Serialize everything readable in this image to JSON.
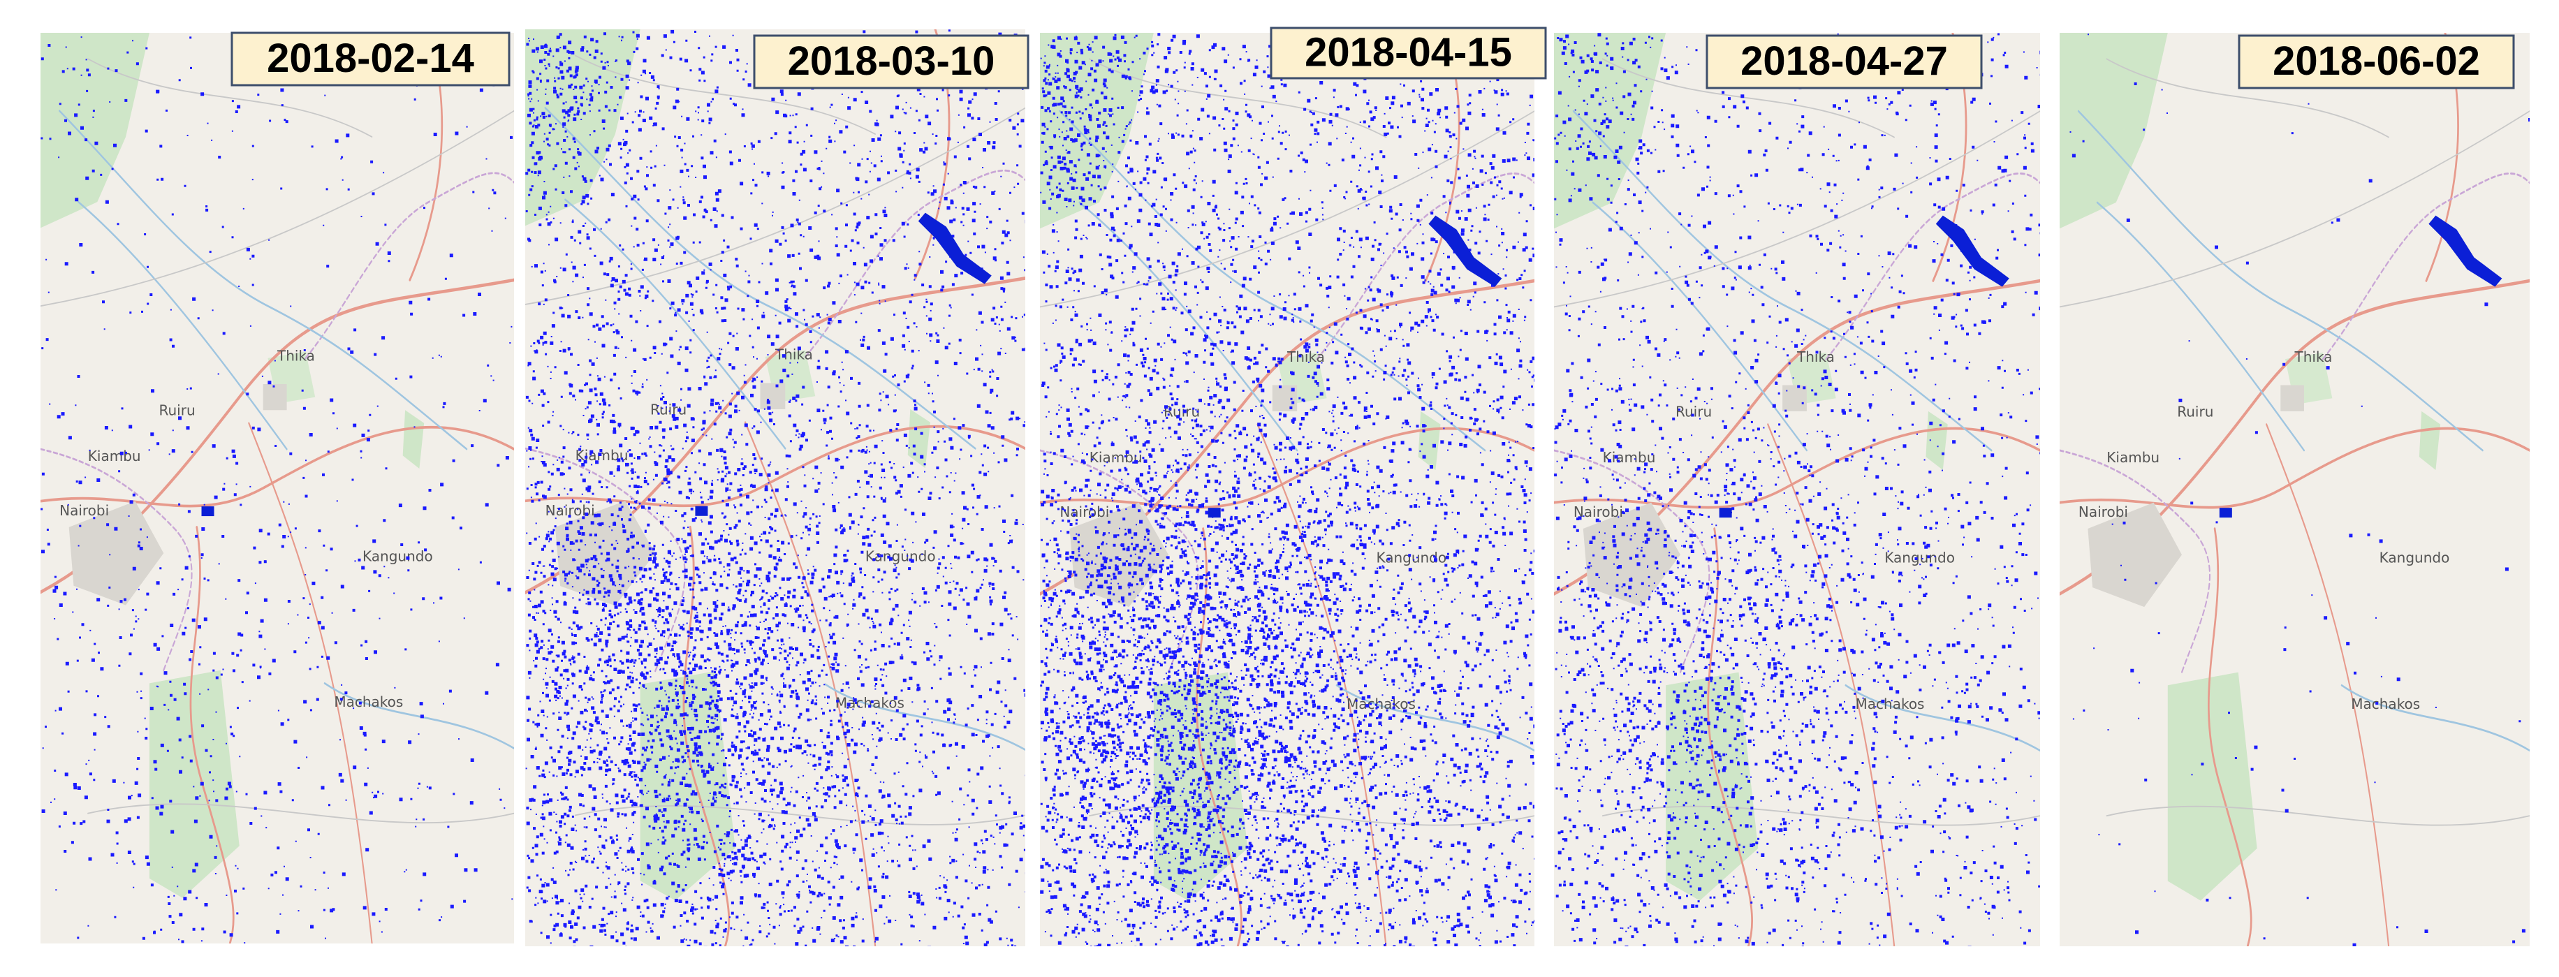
{
  "panels": [
    {
      "date": "2018-02-14"
    },
    {
      "date": "2018-03-10"
    },
    {
      "date": "2018-04-15"
    },
    {
      "date": "2018-04-27"
    },
    {
      "date": "2018-06-02"
    }
  ],
  "map_labels": [
    "Kiambu",
    "Nairobi",
    "Thika",
    "Machakos",
    "Kangundo",
    "Ruiru"
  ]
}
